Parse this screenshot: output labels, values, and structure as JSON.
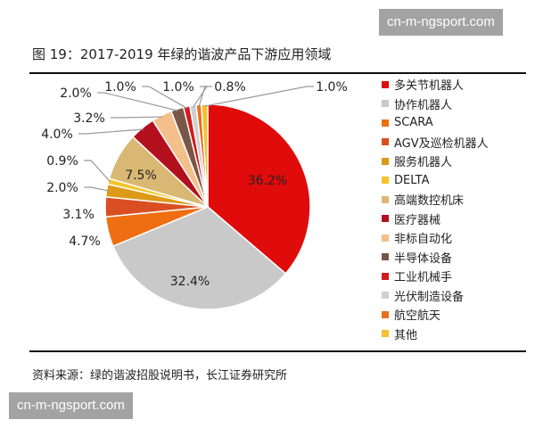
{
  "watermark": "cn-m-ngsport.com",
  "title": "图 19：2017-2019 年绿的谐波产品下游应用领域",
  "source": "资料来源：绿的谐波招股说明书，长江证券研究所",
  "chart_data": {
    "type": "pie",
    "title": "图 19：2017-2019 年绿的谐波产品下游应用领域",
    "start_angle": "12 o'clock",
    "direction": "clockwise",
    "legend_position": "right",
    "slices": [
      {
        "name": "多关节机器人",
        "value": 36.2,
        "label": "36.2%",
        "color": "#e00b0b"
      },
      {
        "name": "协作机器人",
        "value": 32.4,
        "label": "32.4%",
        "color": "#c9c9c9"
      },
      {
        "name": "SCARA",
        "value": 4.7,
        "label": "4.7%",
        "color": "#f06e12"
      },
      {
        "name": "AGV及巡检机器人",
        "value": 3.1,
        "label": "3.1%",
        "color": "#d94f22"
      },
      {
        "name": "服务机器人",
        "value": 2.0,
        "label": "2.0%",
        "color": "#dc9a18"
      },
      {
        "name": "DELTA",
        "value": 0.9,
        "label": "0.9%",
        "color": "#f5c42a"
      },
      {
        "name": "高端数控机床",
        "value": 7.5,
        "label": "7.5%",
        "color": "#d9b874"
      },
      {
        "name": "医疗器械",
        "value": 4.0,
        "label": "4.0%",
        "color": "#b3101e"
      },
      {
        "name": "非标自动化",
        "value": 3.2,
        "label": "3.2%",
        "color": "#f3c08c"
      },
      {
        "name": "半导体设备",
        "value": 2.0,
        "label": "2.0%",
        "color": "#7a5646"
      },
      {
        "name": "工业机械手",
        "value": 1.0,
        "label": "1.0%",
        "color": "#d21a1a"
      },
      {
        "name": "光伏制造设备",
        "value": 1.0,
        "label": "1.0%",
        "color": "#cfcfcf"
      },
      {
        "name": "航空航天",
        "value": 0.8,
        "label": "0.8%",
        "color": "#e8701e"
      },
      {
        "name": "其他",
        "value": 1.0,
        "label": "1.0%",
        "color": "#f5c030"
      }
    ]
  }
}
